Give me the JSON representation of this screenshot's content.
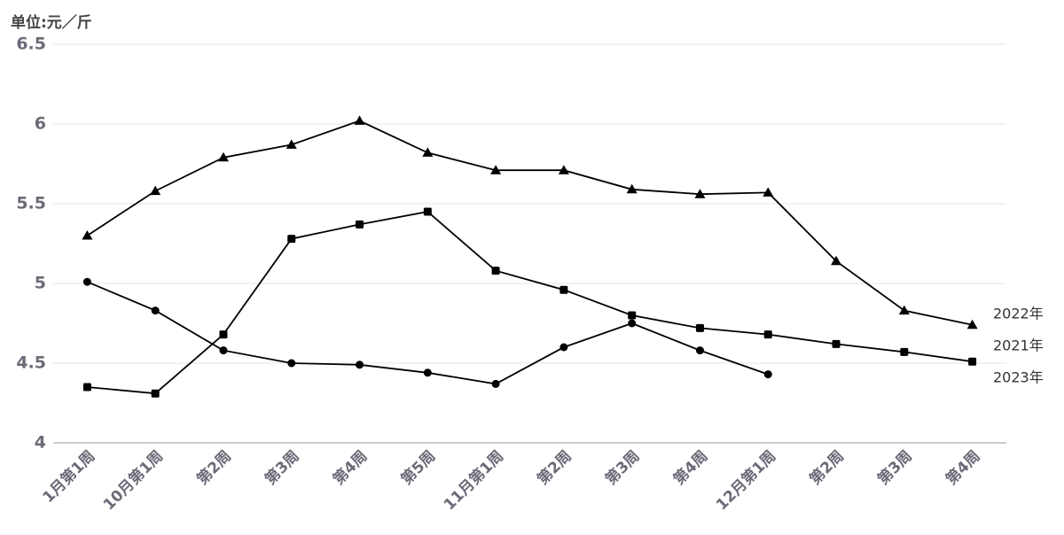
{
  "chart_data": {
    "type": "line",
    "unit_label": "单位:元／斤",
    "categories": [
      "1月第1周",
      "10月第1周",
      "第2周",
      "第3周",
      "第4周",
      "第5周",
      "11月第1周",
      "第2周",
      "第3周",
      "第4周",
      "12月第1周",
      "第2周",
      "第3周",
      "第4周"
    ],
    "series": [
      {
        "name": "2022年",
        "color": "#000000",
        "marker": "triangle",
        "values": [
          5.3,
          5.58,
          5.79,
          5.87,
          6.02,
          5.82,
          5.71,
          5.71,
          5.59,
          5.56,
          5.57,
          5.14,
          4.83,
          4.74
        ]
      },
      {
        "name": "2021年",
        "color": "#000000",
        "marker": "square",
        "values": [
          4.35,
          4.31,
          4.68,
          5.28,
          5.37,
          5.45,
          5.08,
          4.96,
          4.8,
          4.72,
          4.68,
          4.62,
          4.57,
          4.51
        ]
      },
      {
        "name": "2023年",
        "color": "#000000",
        "marker": "circle",
        "values": [
          5.01,
          4.83,
          4.58,
          4.5,
          4.49,
          4.44,
          4.37,
          4.6,
          4.75,
          4.58,
          4.43,
          null,
          null,
          null
        ]
      }
    ],
    "ylim": [
      4,
      6.5
    ],
    "yticks": [
      4,
      4.5,
      5,
      5.5,
      6,
      6.5
    ],
    "grid": true
  }
}
